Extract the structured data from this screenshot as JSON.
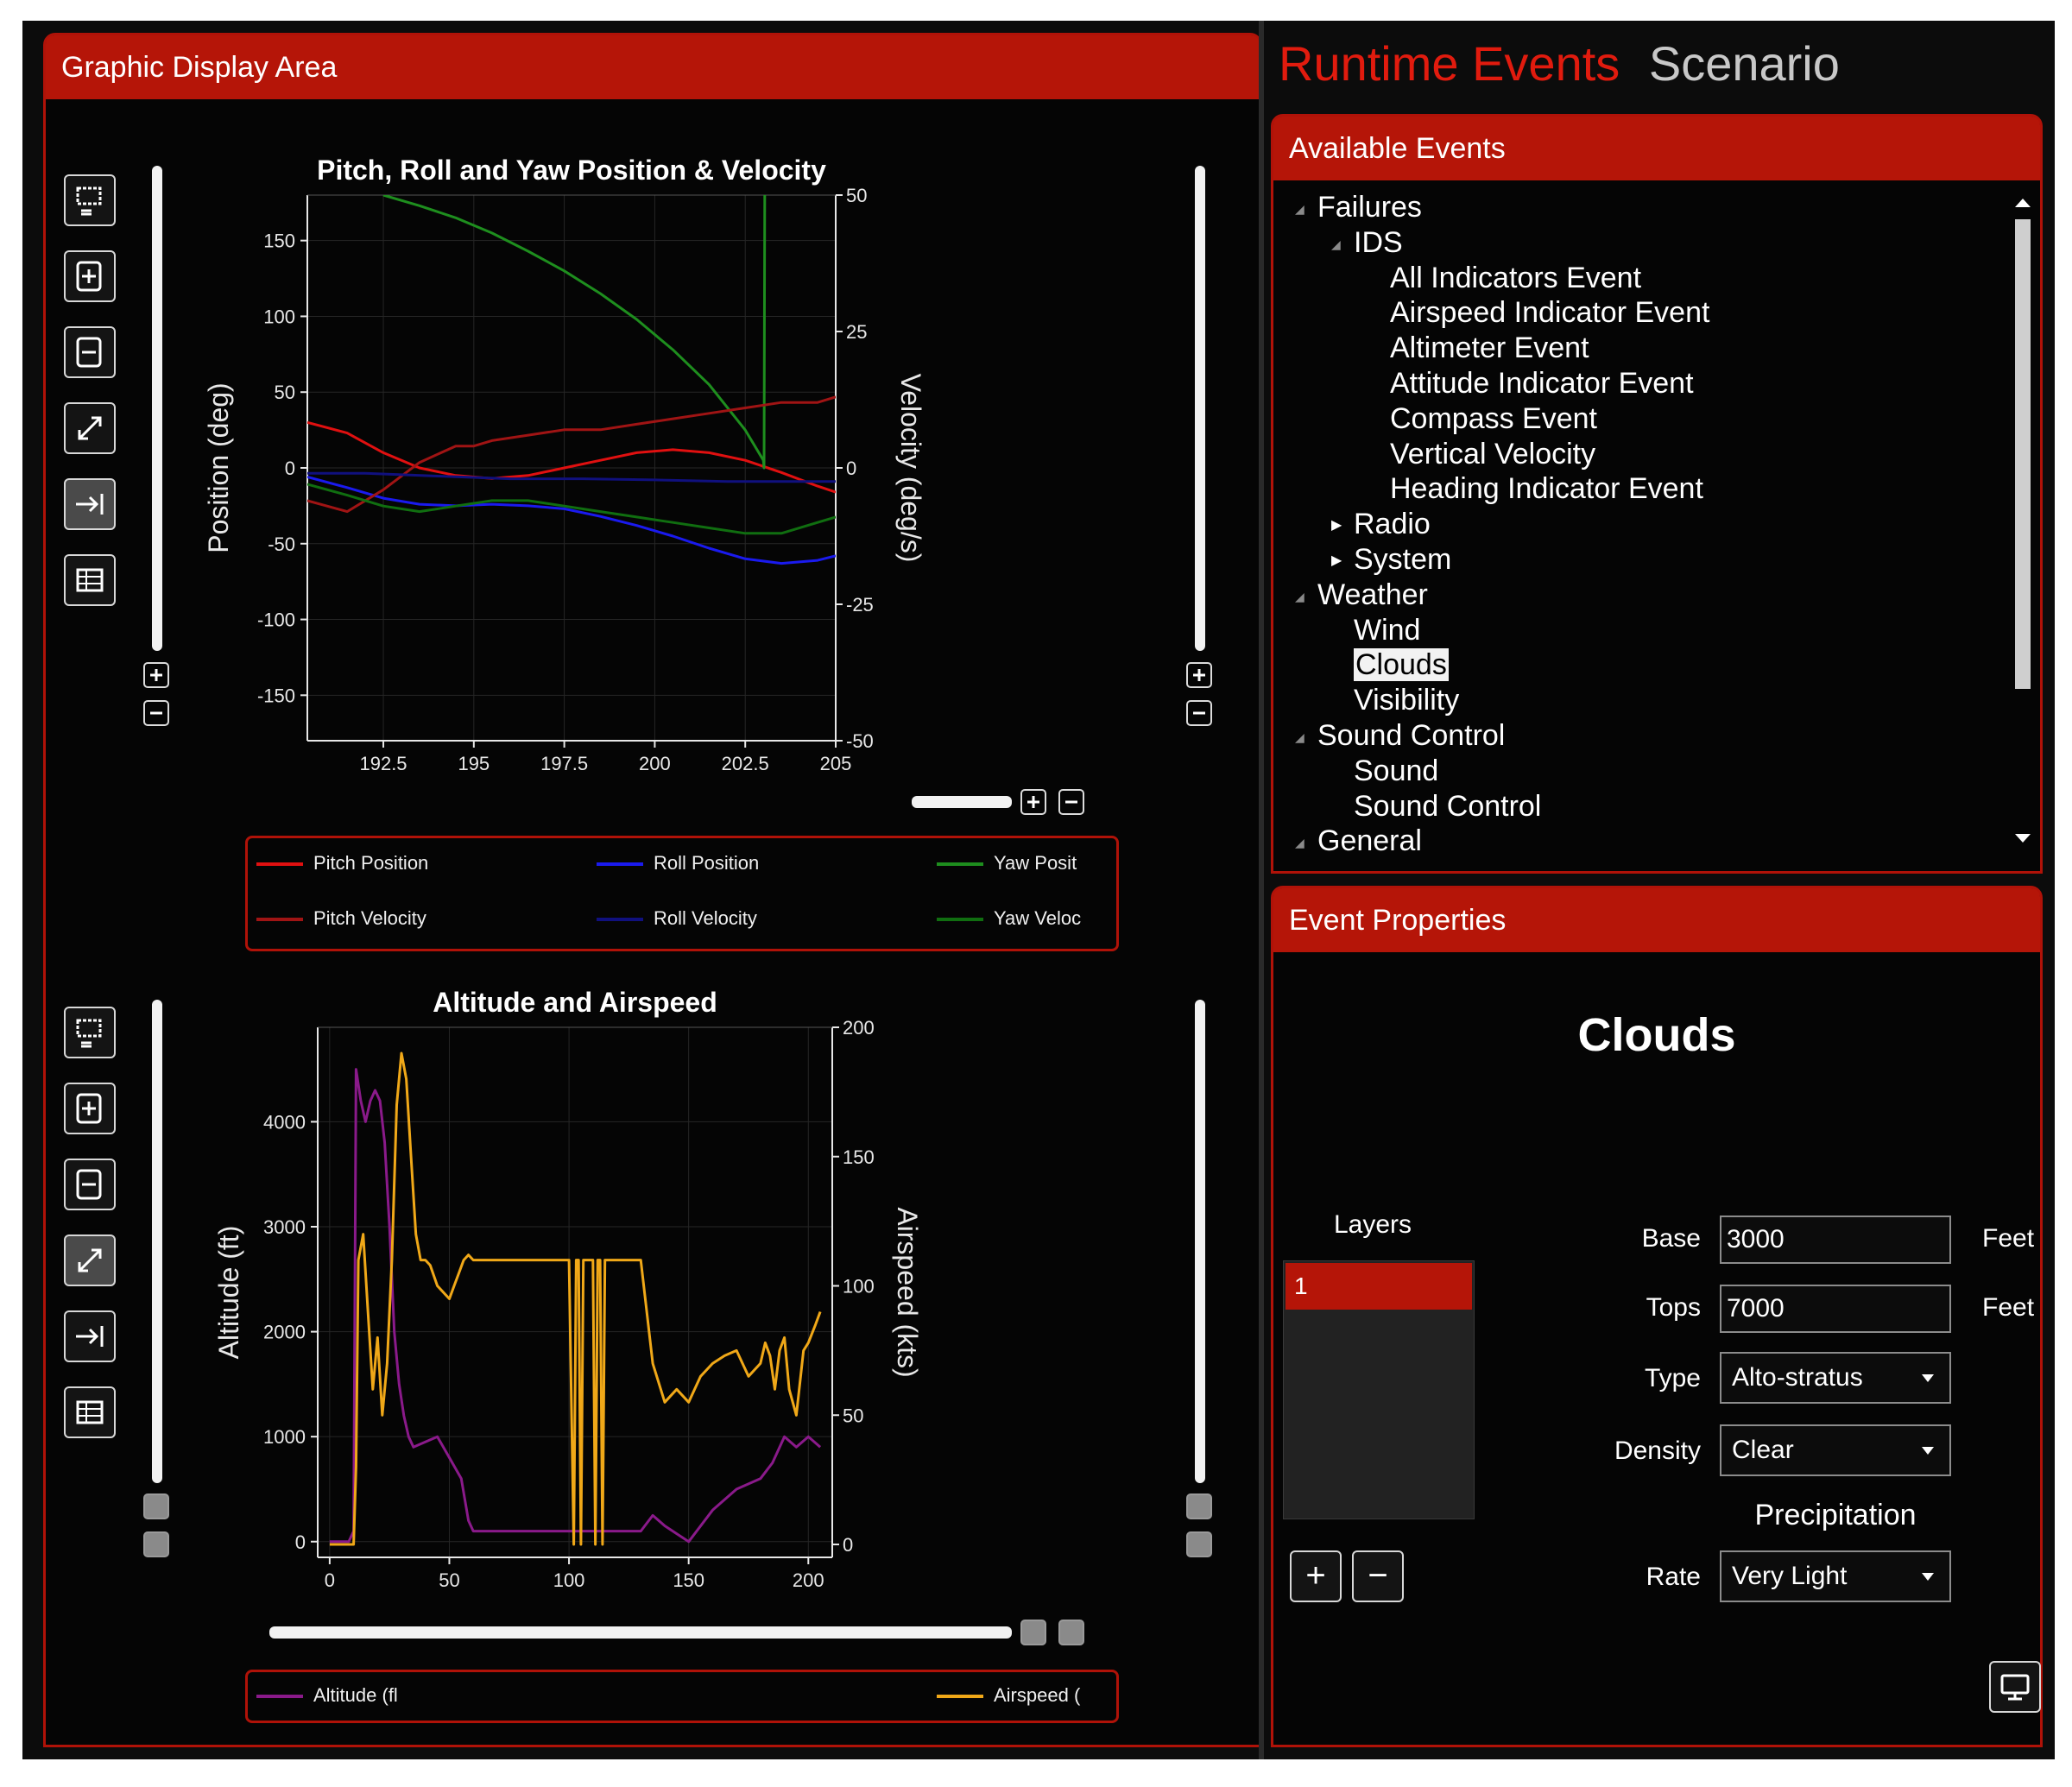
{
  "left_panel": {
    "title": "Graphic Display Area"
  },
  "tabs": {
    "runtime_events": "Runtime Events",
    "scenario": "Scenario"
  },
  "colors": {
    "accent": "#b51508",
    "active_tab": "#e11b0e",
    "inactive_tab": "#c8c8c8"
  },
  "chart_toolbar_icons": [
    "zoom-region-icon",
    "zoom-in-icon",
    "zoom-out-icon",
    "zoom-extents-icon",
    "follow-icon",
    "export-icon"
  ],
  "chart_data": [
    {
      "type": "line",
      "title": "Pitch, Roll and Yaw Position & Velocity",
      "ylabel": "Position (deg)",
      "y2label": "Velocity (deg/s)",
      "xlim": [
        190.4,
        205
      ],
      "ylim": [
        -180,
        180
      ],
      "y2lim": [
        -50,
        50
      ],
      "xticks": [
        "192.5",
        "195",
        "197.5",
        "200",
        "202.5",
        "205"
      ],
      "yticks": [
        "150",
        "100",
        "50",
        "0",
        "-50",
        "-100",
        "-150"
      ],
      "y2ticks": [
        "50",
        "25",
        "0",
        "-25",
        "-50"
      ],
      "grid": true,
      "legend_position": "bottom",
      "series": [
        {
          "name": "Pitch Position",
          "color": "#e01010",
          "axis": "left",
          "x": [
            190.4,
            191.5,
            192.5,
            193.5,
            194.5,
            195.5,
            196.5,
            197.5,
            198.5,
            199.5,
            200.5,
            201.5,
            202.5,
            203.5,
            204.5,
            205
          ],
          "y": [
            30,
            23,
            10,
            0,
            -5,
            -7,
            -5,
            0,
            5,
            10,
            12,
            10,
            5,
            -3,
            -12,
            -16
          ]
        },
        {
          "name": "Roll Position",
          "color": "#1a1aee",
          "axis": "left",
          "x": [
            190.4,
            191.5,
            192.5,
            193.5,
            194.5,
            195.5,
            196.5,
            197.5,
            198.5,
            199.5,
            200.5,
            201.5,
            202.5,
            203.5,
            204.5,
            205
          ],
          "y": [
            -6,
            -13,
            -20,
            -24,
            -25,
            -24,
            -25,
            -27,
            -32,
            -38,
            -45,
            -53,
            -60,
            -63,
            -61,
            -58
          ]
        },
        {
          "name": "Yaw Posit",
          "color": "#1e8e1e",
          "axis": "left",
          "x": [
            192.5,
            193.5,
            194.5,
            195.5,
            196.5,
            197.5,
            198.5,
            199.5,
            200.5,
            201.5,
            202.5,
            203,
            203.02,
            203.04
          ],
          "y": [
            180,
            173,
            165,
            155,
            143,
            130,
            115,
            98,
            78,
            55,
            25,
            5,
            0,
            180
          ]
        },
        {
          "name": "Pitch Velocity",
          "color": "#a01414",
          "axis": "right",
          "x": [
            190.4,
            191.5,
            192.5,
            193.5,
            194.5,
            195,
            195.5,
            196.5,
            197.5,
            198.5,
            199.5,
            200.5,
            201.5,
            202.5,
            203.5,
            204.5,
            205
          ],
          "y": [
            -6,
            -8,
            -4,
            1,
            4,
            4,
            5,
            6,
            7,
            7,
            8,
            9,
            10,
            11,
            12,
            12,
            13
          ]
        },
        {
          "name": "Roll Velocity",
          "color": "#10107e",
          "axis": "right",
          "x": [
            190.4,
            192,
            194,
            196,
            198,
            200,
            202,
            204,
            205
          ],
          "y": [
            -1,
            -1,
            -1.5,
            -2,
            -2,
            -2.2,
            -2.5,
            -2.5,
            -2.5
          ]
        },
        {
          "name": "Yaw Veloc",
          "color": "#106e10",
          "axis": "right",
          "x": [
            190.4,
            191.5,
            192.5,
            193.5,
            194.5,
            195.5,
            196.5,
            197.5,
            198.5,
            199.5,
            200.5,
            201.5,
            202.5,
            203.5,
            204.5,
            205
          ],
          "y": [
            -3,
            -5,
            -7,
            -8,
            -7,
            -6,
            -6,
            -7,
            -8,
            -9,
            -10,
            -11,
            -12,
            -12,
            -10,
            -9
          ]
        }
      ]
    },
    {
      "type": "line",
      "title": "Altitude and Airspeed",
      "ylabel": "Altitude (ft)",
      "y2label": "Airspeed (kts)",
      "xlim": [
        -5,
        210
      ],
      "ylim": [
        -150,
        4900
      ],
      "y2lim": [
        -5,
        200
      ],
      "xticks": [
        "0",
        "50",
        "100",
        "150",
        "200"
      ],
      "yticks": [
        "4000",
        "3000",
        "2000",
        "1000",
        "0"
      ],
      "y2ticks": [
        "200",
        "150",
        "100",
        "50",
        "0"
      ],
      "grid": true,
      "legend_position": "bottom",
      "series": [
        {
          "name": "Altitude (fl",
          "color": "#8a1a8a",
          "axis": "left",
          "x": [
            0,
            8,
            10,
            11,
            13,
            15,
            17,
            19,
            21,
            23,
            25,
            27,
            29,
            31,
            33,
            35,
            40,
            45,
            50,
            55,
            58,
            60,
            80,
            100,
            120,
            130,
            135,
            140,
            150,
            160,
            170,
            180,
            185,
            190,
            195,
            200,
            205
          ],
          "y": [
            0,
            0,
            100,
            4500,
            4200,
            4000,
            4200,
            4300,
            4200,
            3800,
            3000,
            2000,
            1500,
            1200,
            1000,
            900,
            950,
            1000,
            800,
            600,
            200,
            100,
            100,
            100,
            100,
            100,
            250,
            150,
            0,
            300,
            500,
            600,
            750,
            1000,
            900,
            1000,
            900
          ]
        },
        {
          "name": "Airspeed (",
          "color": "#f0a818",
          "axis": "right",
          "x": [
            0,
            10,
            11,
            12,
            14,
            16,
            18,
            20,
            22,
            24,
            26,
            28,
            30,
            32,
            34,
            36,
            38,
            40,
            42,
            45,
            50,
            52,
            54,
            56,
            58,
            60,
            62,
            64,
            100,
            102,
            103,
            104,
            105,
            106,
            110,
            111,
            112,
            113,
            114,
            115,
            130,
            135,
            140,
            145,
            150,
            155,
            160,
            165,
            170,
            175,
            180,
            182,
            184,
            186,
            188,
            190,
            192,
            195,
            198,
            200,
            203,
            205
          ],
          "y": [
            0,
            0,
            30,
            110,
            120,
            90,
            60,
            80,
            50,
            70,
            110,
            170,
            190,
            180,
            150,
            120,
            110,
            110,
            108,
            100,
            95,
            100,
            105,
            110,
            112,
            110,
            110,
            110,
            110,
            0,
            110,
            110,
            0,
            110,
            110,
            0,
            110,
            110,
            0,
            110,
            110,
            70,
            55,
            60,
            55,
            65,
            70,
            73,
            75,
            65,
            70,
            78,
            73,
            60,
            75,
            80,
            60,
            50,
            75,
            78,
            85,
            90
          ]
        }
      ]
    }
  ],
  "legend1": {
    "items": [
      "Pitch Position",
      "Roll Position",
      "Yaw Posit",
      "Pitch Velocity",
      "Roll Velocity",
      "Yaw Veloc"
    ]
  },
  "legend2": {
    "items": [
      "Altitude (fl",
      "Airspeed ("
    ]
  },
  "available_events": {
    "title": "Available Events",
    "tree": [
      {
        "label": "Failures",
        "level": 0,
        "toggle": "expanded"
      },
      {
        "label": "IDS",
        "level": 1,
        "toggle": "expanded"
      },
      {
        "label": "All Indicators Event",
        "level": 2,
        "toggle": ""
      },
      {
        "label": "Airspeed Indicator Event",
        "level": 2,
        "toggle": ""
      },
      {
        "label": "Altimeter Event",
        "level": 2,
        "toggle": ""
      },
      {
        "label": "Attitude Indicator Event",
        "level": 2,
        "toggle": ""
      },
      {
        "label": "Compass Event",
        "level": 2,
        "toggle": ""
      },
      {
        "label": "Vertical Velocity",
        "level": 2,
        "toggle": ""
      },
      {
        "label": "Heading Indicator Event",
        "level": 2,
        "toggle": ""
      },
      {
        "label": "Radio",
        "level": 1,
        "toggle": "collapsed"
      },
      {
        "label": "System",
        "level": 1,
        "toggle": "collapsed"
      },
      {
        "label": "Weather",
        "level": 0,
        "toggle": "expanded"
      },
      {
        "label": "Wind",
        "level": 1,
        "toggle": ""
      },
      {
        "label": "Clouds",
        "level": 1,
        "toggle": "",
        "selected": true
      },
      {
        "label": "Visibility",
        "level": 1,
        "toggle": ""
      },
      {
        "label": "Sound Control",
        "level": 0,
        "toggle": "expanded"
      },
      {
        "label": "Sound",
        "level": 1,
        "toggle": ""
      },
      {
        "label": "Sound Control",
        "level": 1,
        "toggle": ""
      },
      {
        "label": "General",
        "level": 0,
        "toggle": "expanded"
      }
    ]
  },
  "event_properties": {
    "title": "Event Properties",
    "heading": "Clouds",
    "layers_label": "Layers",
    "layers": [
      "1"
    ],
    "base_label": "Base",
    "base_value": "3000",
    "base_unit": "Feet",
    "tops_label": "Tops",
    "tops_value": "7000",
    "tops_unit": "Feet",
    "type_label": "Type",
    "type_value": "Alto-stratus",
    "density_label": "Density",
    "density_value": "Clear",
    "precipitation_label": "Precipitation",
    "rate_label": "Rate",
    "rate_value": "Very Light",
    "add_layer": "+",
    "remove_layer": "−"
  }
}
